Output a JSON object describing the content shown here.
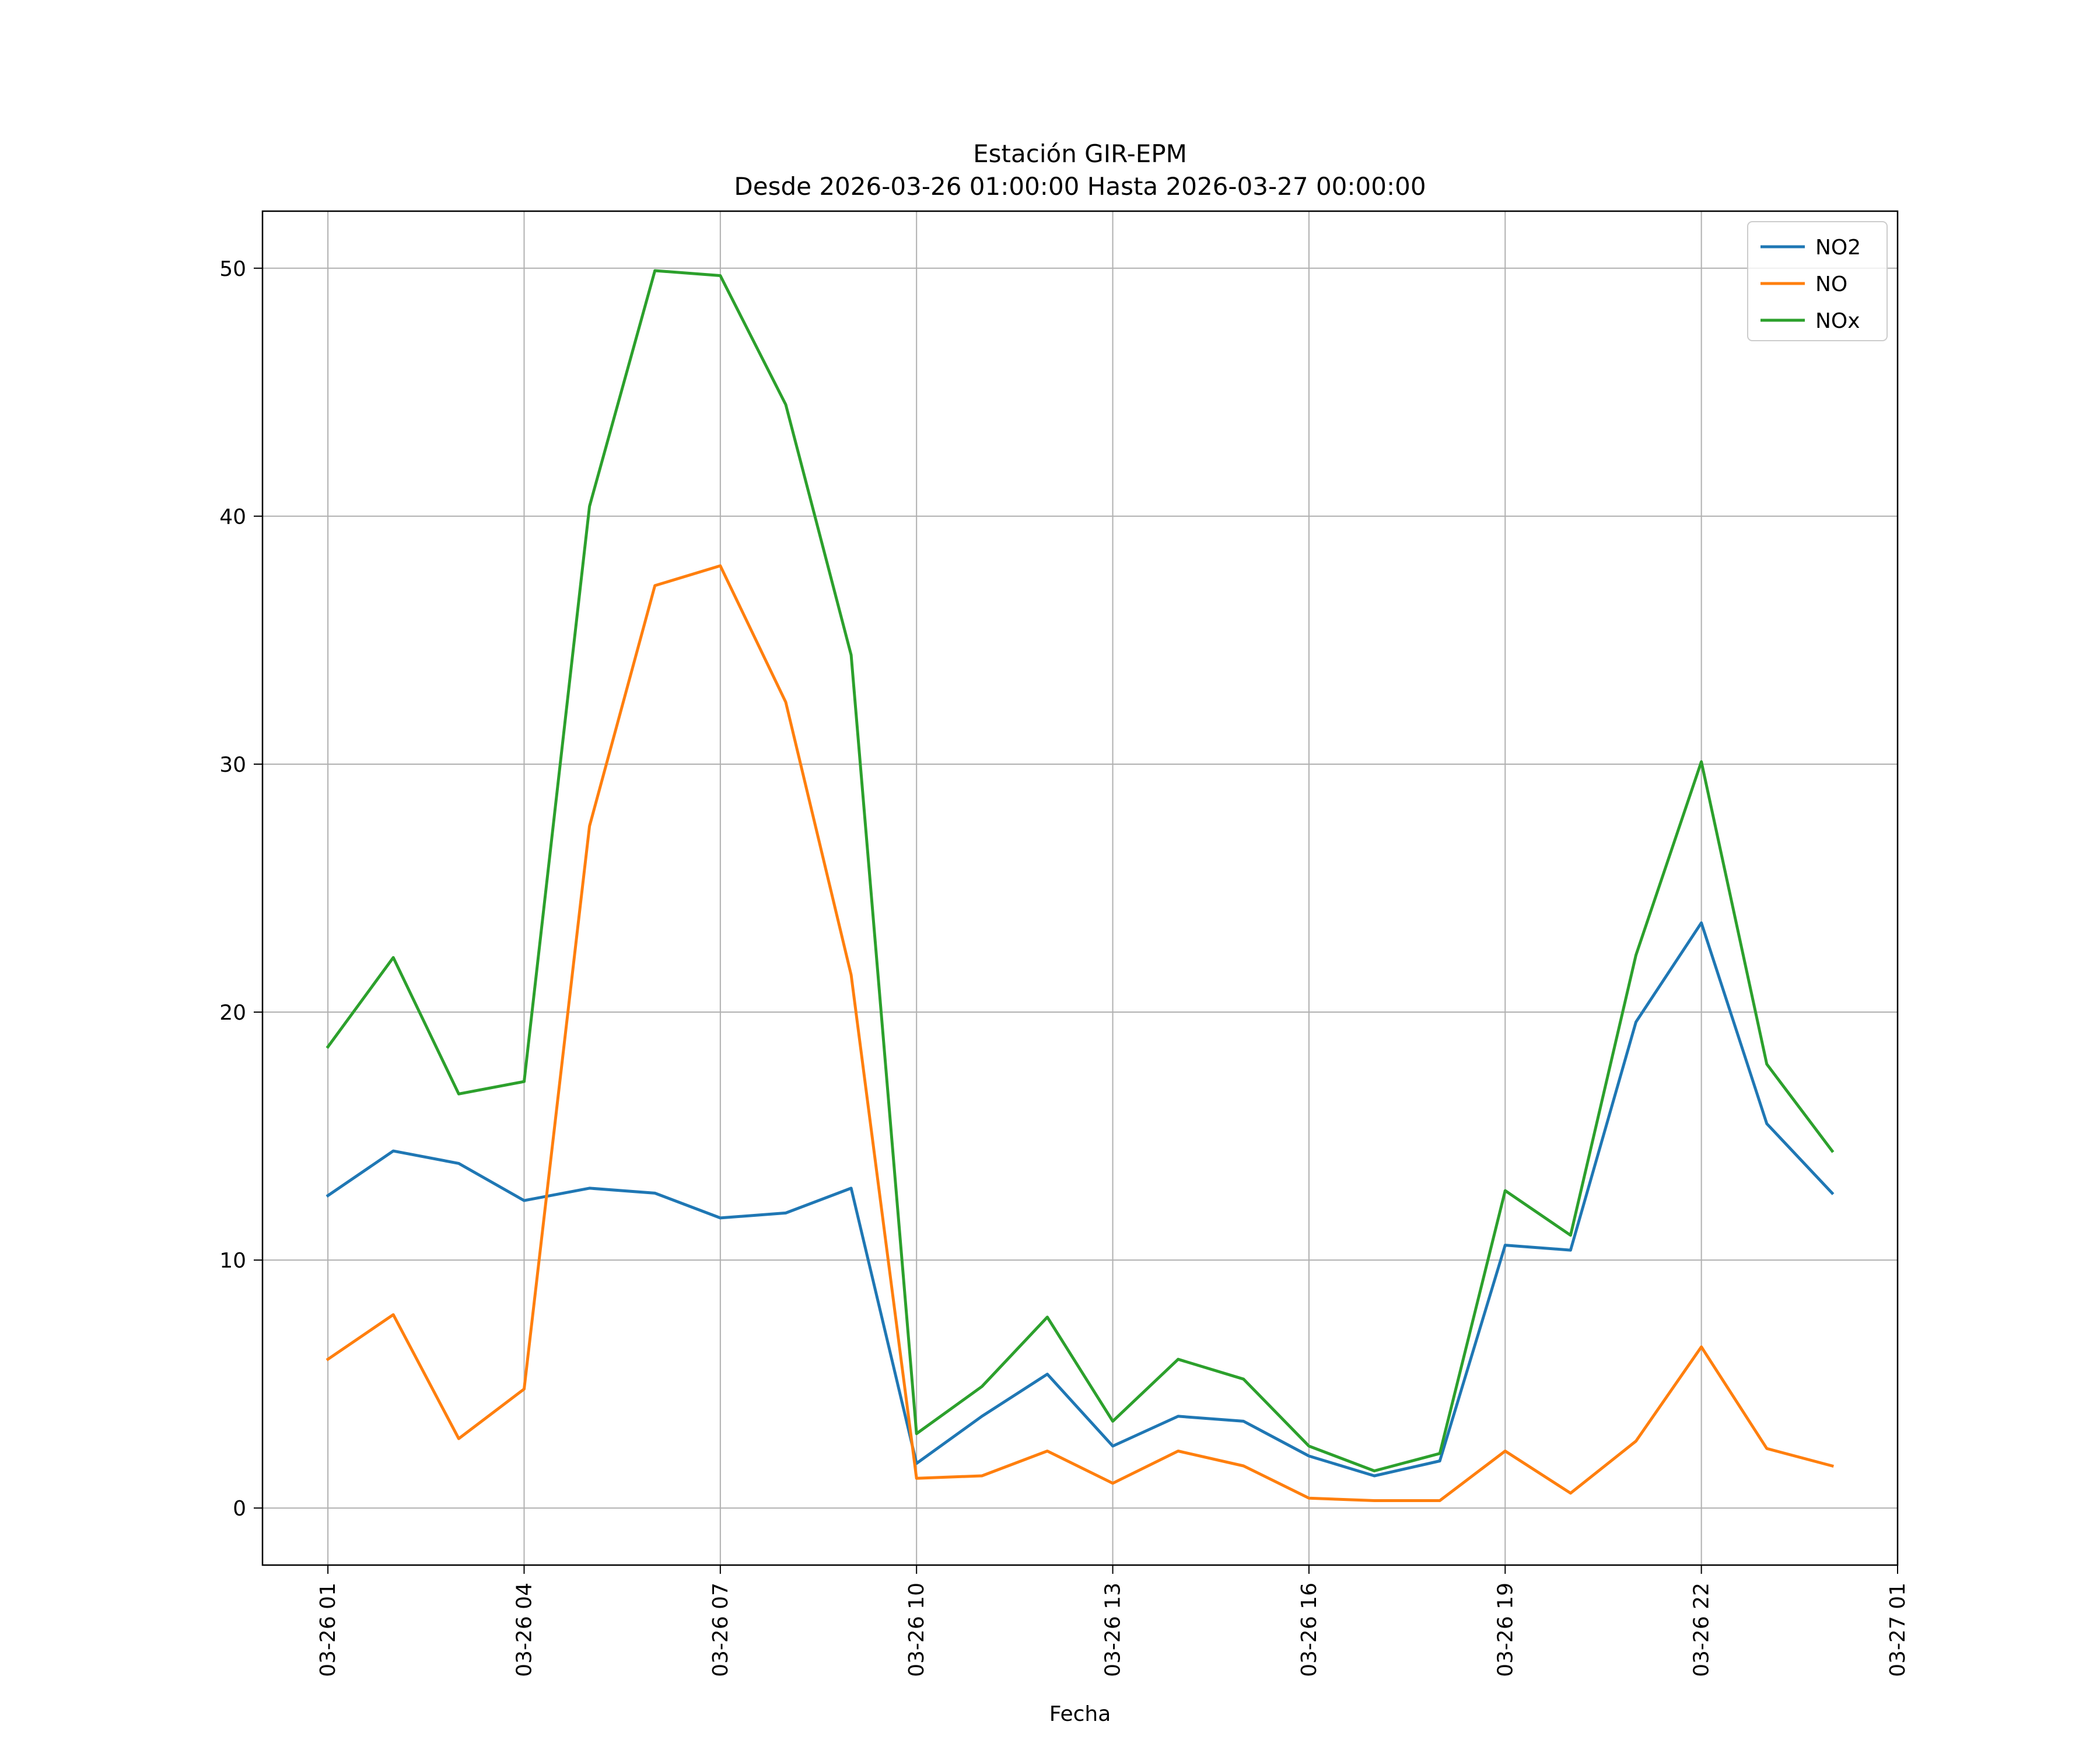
{
  "chart_data": {
    "type": "line",
    "title_line1": "Estación GIR-EPM",
    "title_line2": "Desde 2026-03-26 01:00:00 Hasta 2026-03-27 00:00:00",
    "xlabel": "Fecha",
    "ylabel": "",
    "x": [
      "03-26 01",
      "03-26 02",
      "03-26 03",
      "03-26 04",
      "03-26 05",
      "03-26 06",
      "03-26 07",
      "03-26 08",
      "03-26 09",
      "03-26 10",
      "03-26 11",
      "03-26 12",
      "03-26 13",
      "03-26 14",
      "03-26 15",
      "03-26 16",
      "03-26 17",
      "03-26 18",
      "03-26 19",
      "03-26 20",
      "03-26 21",
      "03-26 22",
      "03-26 23",
      "03-27 00"
    ],
    "xlim": [
      "03-26 00",
      "03-27 01"
    ],
    "x_ticks": [
      "03-26 01",
      "03-26 04",
      "03-26 07",
      "03-26 10",
      "03-26 13",
      "03-26 16",
      "03-26 19",
      "03-26 22",
      "03-27 01"
    ],
    "ylim": [
      -2.3,
      52.3
    ],
    "y_ticks": [
      0,
      10,
      20,
      30,
      40,
      50
    ],
    "grid": true,
    "legend_position": "top-right",
    "series": [
      {
        "name": "NO2",
        "color": "#1f77b4",
        "values": [
          12.6,
          14.4,
          13.9,
          12.4,
          12.9,
          12.7,
          11.7,
          11.9,
          12.9,
          1.8,
          3.7,
          5.4,
          2.5,
          3.7,
          3.5,
          2.1,
          1.3,
          1.9,
          10.6,
          10.4,
          19.6,
          23.6,
          15.5,
          12.7
        ]
      },
      {
        "name": "NO",
        "color": "#ff7f0e",
        "values": [
          6.0,
          7.8,
          2.8,
          4.8,
          27.5,
          37.2,
          38.0,
          32.5,
          21.5,
          1.2,
          1.3,
          2.3,
          1.0,
          2.3,
          1.7,
          0.4,
          0.3,
          0.3,
          2.3,
          0.6,
          2.7,
          6.5,
          2.4,
          1.7
        ]
      },
      {
        "name": "NOx",
        "color": "#2ca02c",
        "values": [
          18.6,
          22.2,
          16.7,
          17.2,
          40.4,
          49.9,
          49.7,
          44.5,
          34.4,
          3.0,
          4.9,
          7.7,
          3.5,
          6.0,
          5.2,
          2.5,
          1.5,
          2.2,
          12.8,
          11.0,
          22.3,
          30.1,
          17.9,
          14.4
        ]
      }
    ]
  }
}
